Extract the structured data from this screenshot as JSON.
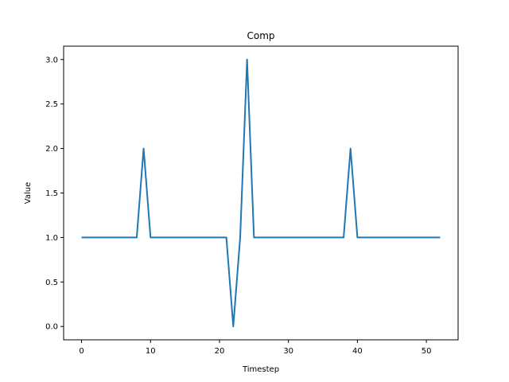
{
  "chart_data": {
    "type": "line",
    "title": "Comp",
    "xlabel": "Timestep",
    "ylabel": "Value",
    "xlim": [
      -2.6,
      54.6
    ],
    "ylim": [
      -0.15,
      3.15
    ],
    "xticks": [
      0,
      10,
      20,
      30,
      40,
      50
    ],
    "yticks": [
      0.0,
      0.5,
      1.0,
      1.5,
      2.0,
      2.5,
      3.0
    ],
    "xtick_labels": [
      "0",
      "10",
      "20",
      "30",
      "40",
      "50"
    ],
    "ytick_labels": [
      "0.0",
      "0.5",
      "1.0",
      "1.5",
      "2.0",
      "2.5",
      "3.0"
    ],
    "grid": false,
    "series": [
      {
        "color": "#1f77b4",
        "x": [
          0,
          1,
          2,
          3,
          4,
          5,
          6,
          7,
          8,
          9,
          10,
          11,
          12,
          13,
          14,
          15,
          16,
          17,
          18,
          19,
          20,
          21,
          22,
          23,
          24,
          25,
          26,
          27,
          28,
          29,
          30,
          31,
          32,
          33,
          34,
          35,
          36,
          37,
          38,
          39,
          40,
          41,
          42,
          43,
          44,
          45,
          46,
          47,
          48,
          49,
          50,
          51,
          52
        ],
        "y": [
          1,
          1,
          1,
          1,
          1,
          1,
          1,
          1,
          1,
          2,
          1,
          1,
          1,
          1,
          1,
          1,
          1,
          1,
          1,
          1,
          1,
          1,
          0,
          1,
          3,
          1,
          1,
          1,
          1,
          1,
          1,
          1,
          1,
          1,
          1,
          1,
          1,
          1,
          1,
          2,
          1,
          1,
          1,
          1,
          1,
          1,
          1,
          1,
          1,
          1,
          1,
          1,
          1
        ]
      }
    ]
  }
}
